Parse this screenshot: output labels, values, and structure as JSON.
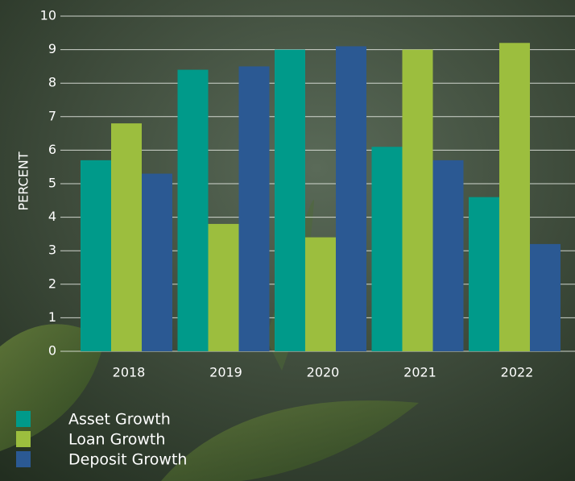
{
  "chart_data": {
    "type": "bar",
    "categories": [
      "2018",
      "2019",
      "2020",
      "2021",
      "2022"
    ],
    "y_label": "PERCENT",
    "series": [
      {
        "name": "Asset Growth",
        "color": "#009a8a",
        "values": [
          5.7,
          8.4,
          9.0,
          6.1,
          4.6
        ]
      },
      {
        "name": "Loan Growth",
        "color": "#9cbe3e",
        "values": [
          6.8,
          3.8,
          3.4,
          9.0,
          9.2
        ]
      },
      {
        "name": "Deposit Growth",
        "color": "#2b5993",
        "values": [
          5.3,
          8.5,
          9.1,
          5.7,
          3.2
        ]
      }
    ],
    "ylim": [
      0,
      10
    ],
    "yticks": [
      0,
      1,
      2,
      3,
      4,
      5,
      6,
      7,
      8,
      9,
      10
    ],
    "grid": true
  }
}
